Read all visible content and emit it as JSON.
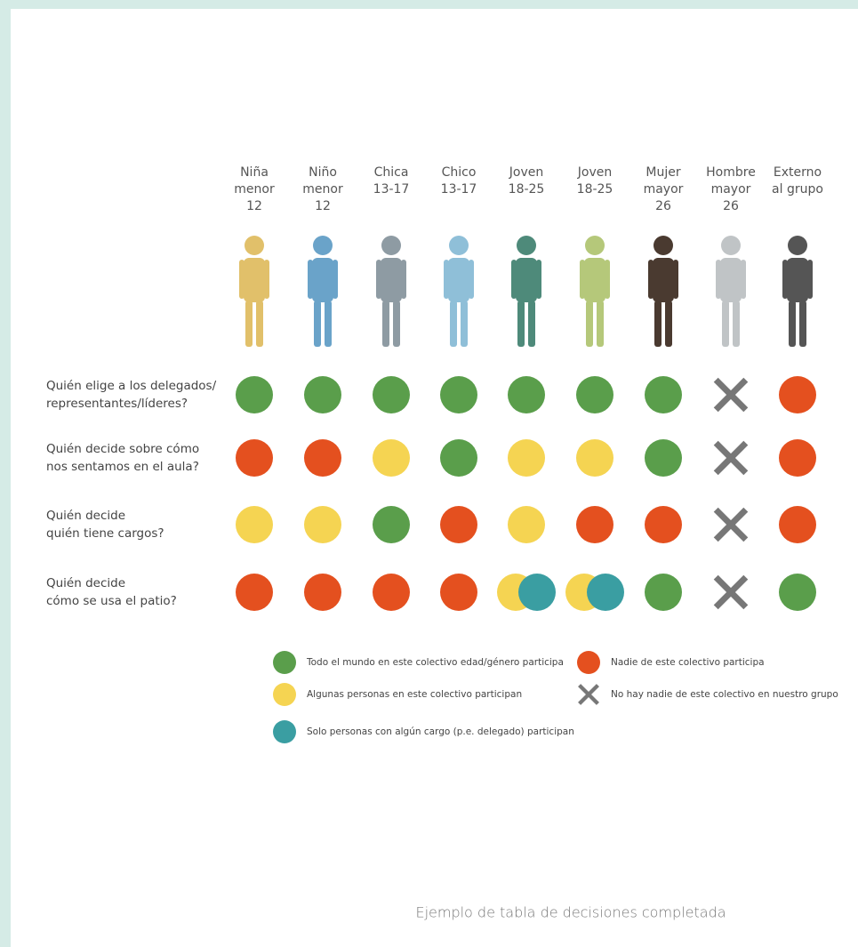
{
  "columns": [
    [
      "Niña",
      "menor",
      "12"
    ],
    [
      "Niño",
      "menor",
      "12"
    ],
    [
      "Chica",
      "13-17"
    ],
    [
      "Chico",
      "13-17"
    ],
    [
      "Joven",
      "18-25"
    ],
    [
      "Joven",
      "18-25"
    ],
    [
      "Mujer",
      "mayor",
      "26"
    ],
    [
      "Hombre",
      "mayor",
      "26"
    ],
    [
      "Externo",
      "al grupo"
    ]
  ],
  "rows": [
    {
      "question": [
        "Quién elige a los delegados/",
        "representantes/líderes?"
      ],
      "cells": [
        [
          0
        ],
        [
          0
        ],
        [
          0
        ],
        [
          0
        ],
        [
          0
        ],
        [
          0
        ],
        [
          0
        ],
        [
          3
        ],
        [
          1
        ]
      ]
    },
    {
      "question": [
        "Quién decide sobre cómo",
        "nos sentamos en el aula?"
      ],
      "cells": [
        [
          1
        ],
        [
          1
        ],
        [
          2
        ],
        [
          0
        ],
        [
          2
        ],
        [
          2
        ],
        [
          0
        ],
        [
          3
        ],
        [
          1
        ]
      ]
    },
    {
      "question": [
        "Quién decide",
        "quién tiene cargos?"
      ],
      "cells": [
        [
          2
        ],
        [
          2
        ],
        [
          0
        ],
        [
          1
        ],
        [
          2
        ],
        [
          1
        ],
        [
          1
        ],
        [
          3
        ],
        [
          1
        ]
      ]
    },
    {
      "question": [
        "Quién decide",
        "cómo se usa el patio?"
      ],
      "cells": [
        [
          1
        ],
        [
          1
        ],
        [
          1
        ],
        [
          1
        ],
        [
          2,
          4
        ],
        [
          2,
          4
        ],
        [
          0
        ],
        [
          3
        ],
        [
          0
        ]
      ]
    }
  ],
  "legend": [
    {
      "label": "Todo el mundo en este colectivo edad/género participa",
      "color": "#5a9e4b",
      "shape": "circle"
    },
    {
      "label": "Nadie de este colectivo participa",
      "color": "#e4501f",
      "shape": "circle"
    },
    {
      "label": "Algunas personas en este colectivo participan",
      "color": "#f5d452",
      "shape": "circle"
    },
    {
      "label": "No hay nadie de este colectivo en nuestro grupo",
      "color": "#777777",
      "shape": "cross"
    },
    {
      "label": "Solo personas con algún cargo (p.e. delegado) participan",
      "color": "#3a9ea2",
      "shape": "circle"
    }
  ],
  "caption": "Ejemplo de tabla de decisiones completada"
}
